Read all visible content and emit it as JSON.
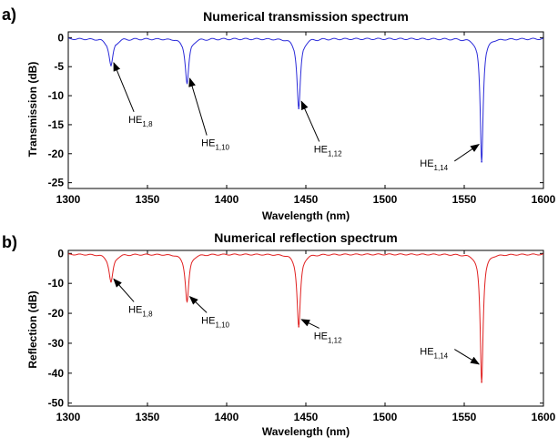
{
  "chart_data": [
    {
      "panel_label": "a)",
      "type": "line",
      "title": "Numerical transmission spectrum",
      "xlabel": "Wavelength (nm)",
      "ylabel": "Transmission (dB)",
      "xlim": [
        1300,
        1600
      ],
      "ylim": [
        -26,
        1
      ],
      "xticks": [
        1300,
        1350,
        1400,
        1450,
        1500,
        1550,
        1600
      ],
      "yticks": [
        0,
        -5,
        -10,
        -15,
        -20,
        -25
      ],
      "grid": false,
      "color": "#2b2bd9",
      "baseline": -0.2,
      "dips": [
        {
          "x": 1327,
          "y": -4.8,
          "width": 1.6
        },
        {
          "x": 1375,
          "y": -7.8,
          "width": 1.4
        },
        {
          "x": 1445.5,
          "y": -12.2,
          "width": 1.3
        },
        {
          "x": 1561,
          "y": -21.4,
          "width": 1.1
        }
      ],
      "annotations": [
        {
          "main": "HE",
          "sub": "1,8",
          "x": 1327
        },
        {
          "main": "HE",
          "sub": "1,10",
          "x": 1375
        },
        {
          "main": "HE",
          "sub": "1,12",
          "x": 1445.5
        },
        {
          "main": "HE",
          "sub": "1,14",
          "x": 1561
        }
      ]
    },
    {
      "panel_label": "b)",
      "type": "line",
      "title": "Numerical reflection spectrum",
      "xlabel": "Wavelength (nm)",
      "ylabel": "Reflection (dB)",
      "xlim": [
        1300,
        1600
      ],
      "ylim": [
        -51,
        1
      ],
      "xticks": [
        1300,
        1350,
        1400,
        1450,
        1500,
        1550,
        1600
      ],
      "yticks": [
        0,
        -10,
        -20,
        -30,
        -40,
        -50
      ],
      "grid": false,
      "color": "#e02020",
      "baseline": -0.3,
      "dips": [
        {
          "x": 1327,
          "y": -9.5,
          "width": 1.6
        },
        {
          "x": 1375,
          "y": -16.0,
          "width": 1.4
        },
        {
          "x": 1445.5,
          "y": -24.5,
          "width": 1.3
        },
        {
          "x": 1561,
          "y": -43.0,
          "width": 1.1
        }
      ],
      "annotations": [
        {
          "main": "HE",
          "sub": "1,8",
          "x": 1327
        },
        {
          "main": "HE",
          "sub": "1,10",
          "x": 1375
        },
        {
          "main": "HE",
          "sub": "1,12",
          "x": 1445.5
        },
        {
          "main": "HE",
          "sub": "1,14",
          "x": 1561
        }
      ]
    }
  ]
}
